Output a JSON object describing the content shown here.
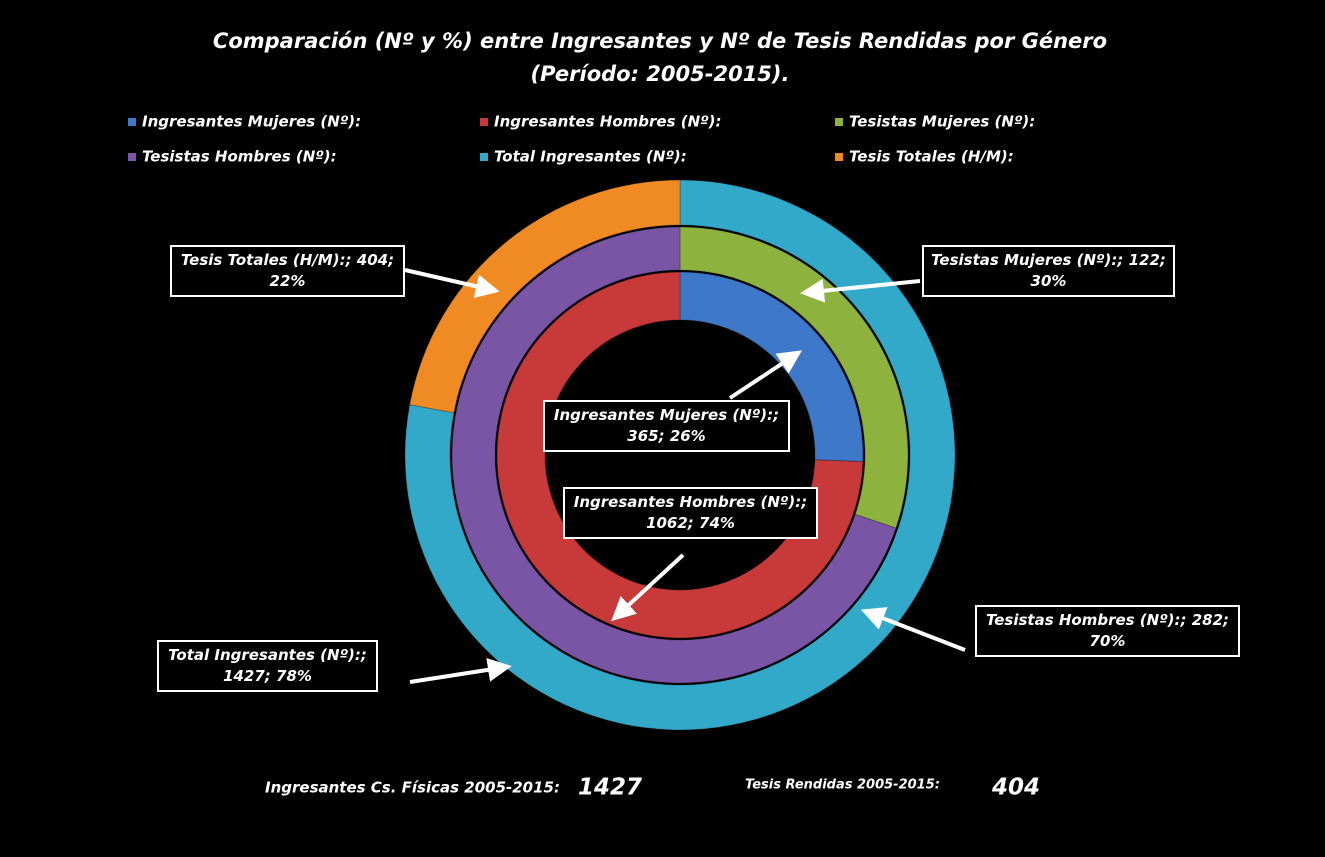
{
  "chart_data": {
    "type": "doughnut",
    "title": "Comparación (Nº y %) entre Ingresantes y  Nº de Tesis Rendidas por Género",
    "subtitle": "(Período: 2005-2015).",
    "series": [
      {
        "name": "Ingresantes Mujeres (Nº):",
        "color": "#3d78c9",
        "ring": 0,
        "values": [
          365
        ],
        "value_labels": [
          "Ingresantes Mujeres (Nº):; 365; 26%"
        ]
      },
      {
        "name": "Ingresantes Hombres (Nº):",
        "color": "#c8393a",
        "ring": 0,
        "values": [
          1062
        ],
        "value_labels": [
          "Ingresantes Hombres (Nº):; 1062; 74%"
        ]
      },
      {
        "name": "Tesistas Mujeres (Nº):",
        "color": "#8db33e",
        "ring": 1,
        "values": [
          122
        ],
        "value_labels": [
          "Tesistas Mujeres (Nº):; 122; 30%"
        ]
      },
      {
        "name": "Tesistas Hombres (Nº):",
        "color": "#7a55a6",
        "ring": 1,
        "values": [
          282
        ],
        "value_labels": [
          "Tesistas Hombres (Nº):; 282; 70%"
        ]
      },
      {
        "name": "Total Ingresantes (Nº):",
        "color": "#32a9c9",
        "ring": 2,
        "values": [
          1427
        ],
        "value_labels": [
          "Total Ingresantes (Nº):; 1427; 78%"
        ]
      },
      {
        "name": "Tesis Totales (H/M):",
        "color": "#f08b24",
        "ring": 2,
        "values": [
          404
        ],
        "value_labels": [
          "Tesis Totales (H/M):; 404; 22%"
        ]
      }
    ],
    "annotations": [
      {
        "text": "Ingresantes Cs. Físicas 2005-2015:",
        "value": 1427
      },
      {
        "text": "Tesis Rendidas 2005-2015:",
        "value": 404
      }
    ]
  }
}
